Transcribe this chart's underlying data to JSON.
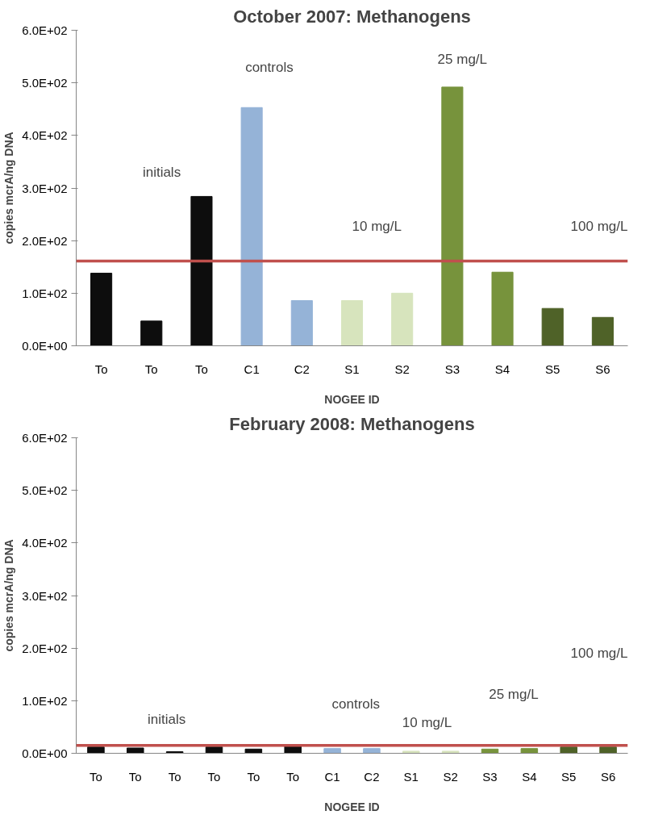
{
  "chart_data": [
    {
      "type": "bar",
      "title": "October 2007: Methanogens",
      "xlabel": "NOGEE ID",
      "ylabel": "copies mcrA/ng DNA",
      "categories": [
        "To",
        "To",
        "To",
        "C1",
        "C2",
        "S1",
        "S2",
        "S3",
        "S4",
        "S5",
        "S6"
      ],
      "values": [
        138,
        47,
        284,
        453,
        86,
        86,
        100,
        492,
        140,
        71,
        54
      ],
      "colors": [
        "#0d0d0d",
        "#0d0d0d",
        "#0d0d0d",
        "#95b3d7",
        "#95b3d7",
        "#d7e4bd",
        "#d7e4bd",
        "#77933c",
        "#77933c",
        "#4f6228",
        "#4f6228"
      ],
      "ylim": [
        0,
        600
      ],
      "yticks": [
        {
          "value": 0,
          "label": "0.0E+00"
        },
        {
          "value": 100,
          "label": "1.0E+02"
        },
        {
          "value": 200,
          "label": "2.0E+02"
        },
        {
          "value": 300,
          "label": "3.0E+02"
        },
        {
          "value": 400,
          "label": "4.0E+02"
        },
        {
          "value": 500,
          "label": "5.0E+02"
        },
        {
          "value": 600,
          "label": "6.0E+02"
        }
      ],
      "ref_lines": [
        {
          "axis": "y",
          "value": 161,
          "color": "#c0504d"
        }
      ],
      "annotations": [
        "initials",
        "controls",
        "10 mg/L",
        "25 mg/L",
        "100 mg/L"
      ],
      "grid": false
    },
    {
      "type": "bar",
      "title": "February 2008: Methanogens",
      "xlabel": "NOGEE ID",
      "ylabel": "copies mcrA/ng DNA",
      "categories": [
        "To",
        "To",
        "To",
        "To",
        "To",
        "To",
        "C1",
        "C2",
        "S1",
        "S2",
        "S3",
        "S4",
        "S5",
        "S6"
      ],
      "values": [
        12,
        10,
        3,
        12,
        8,
        13,
        9,
        9,
        4,
        4,
        8,
        9,
        12,
        12
      ],
      "colors": [
        "#0d0d0d",
        "#0d0d0d",
        "#0d0d0d",
        "#0d0d0d",
        "#0d0d0d",
        "#0d0d0d",
        "#95b3d7",
        "#95b3d7",
        "#d7e4bd",
        "#d7e4bd",
        "#77933c",
        "#77933c",
        "#4f6228",
        "#4f6228"
      ],
      "ylim": [
        0,
        600
      ],
      "yticks": [
        {
          "value": 0,
          "label": "0.0E+00"
        },
        {
          "value": 100,
          "label": "1.0E+02"
        },
        {
          "value": 200,
          "label": "2.0E+02"
        },
        {
          "value": 300,
          "label": "3.0E+02"
        },
        {
          "value": 400,
          "label": "4.0E+02"
        },
        {
          "value": 500,
          "label": "5.0E+02"
        },
        {
          "value": 600,
          "label": "6.0E+02"
        }
      ],
      "ref_lines": [
        {
          "axis": "y",
          "value": 15,
          "color": "#c0504d"
        }
      ],
      "annotations": [
        "initials",
        "controls",
        "10 mg/L",
        "25 mg/L",
        "100 mg/L"
      ],
      "grid": false
    }
  ]
}
